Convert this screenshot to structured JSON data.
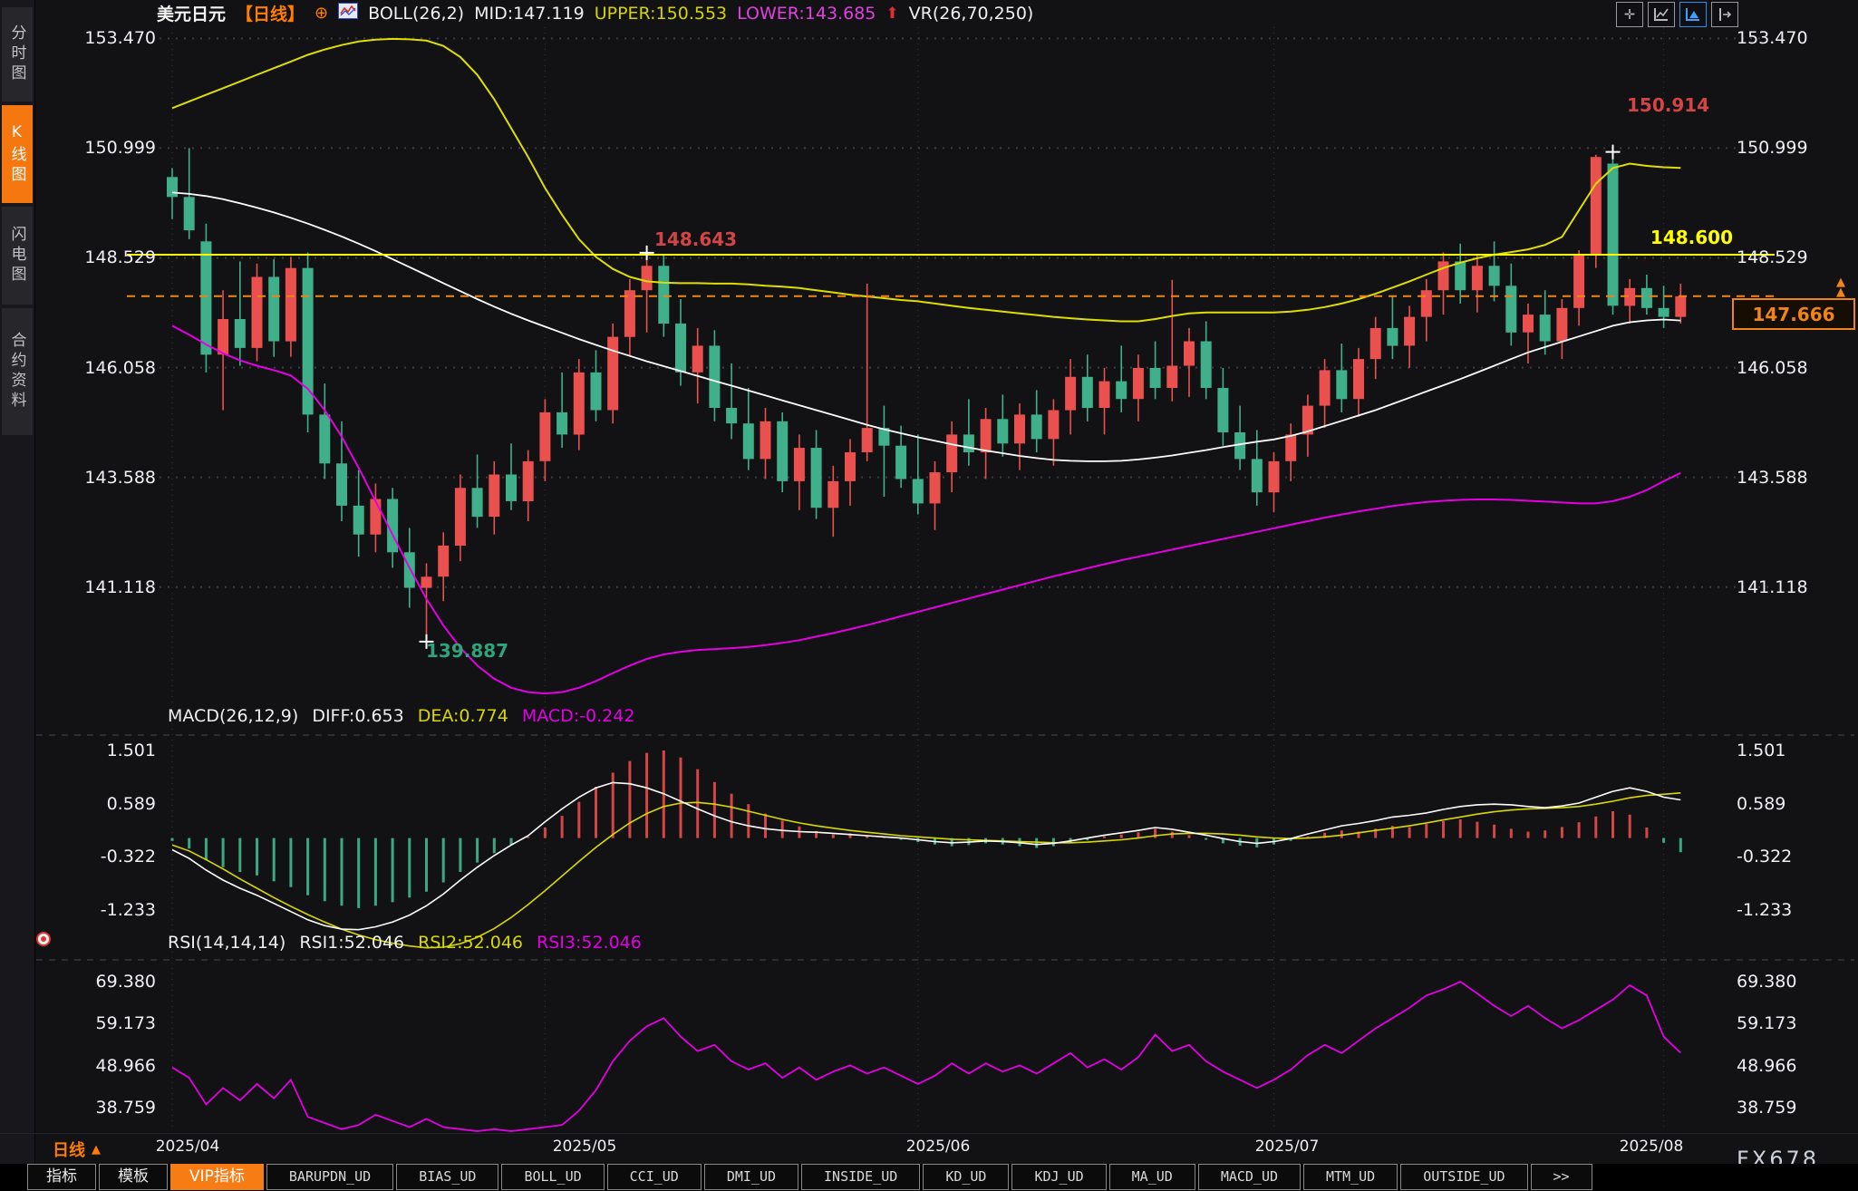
{
  "header": {
    "symbol": "美元日元",
    "period": "【日线】",
    "boll": "BOLL(26,2)",
    "mid": "MID:147.119",
    "upper": "UPPER:150.553",
    "lower": "LOWER:143.685",
    "vr": "VR(26,70,250)"
  },
  "toolbar": {
    "icons": [
      "pan-icon",
      "axis-line-chart-icon",
      "axis-area-chart-icon",
      "axis-shift-icon"
    ],
    "active_index": 2
  },
  "sidebar": {
    "items": [
      {
        "label": "分时图",
        "active": false
      },
      {
        "label": "K线图",
        "active": true
      },
      {
        "label": "闪电图",
        "active": false
      },
      {
        "label": "合约资料",
        "active": false
      }
    ]
  },
  "axis": {
    "main": [
      "153.470",
      "150.999",
      "148.529",
      "146.058",
      "143.588",
      "141.118"
    ],
    "macd": [
      "1.501",
      "0.589",
      "-0.322",
      "-1.233"
    ],
    "rsi": [
      "69.380",
      "59.173",
      "48.966",
      "38.759"
    ]
  },
  "macd_header": {
    "name": "MACD(26,12,9)",
    "diff": "DIFF:0.653",
    "dea": "DEA:0.774",
    "macd": "MACD:-0.242"
  },
  "rsi_header": {
    "name": "RSI(14,14,14)",
    "r1": "RSI1:52.046",
    "r2": "RSI2:52.046",
    "r3": "RSI3:52.046"
  },
  "annotations": {
    "high": "150.914",
    "resistance": "148.600",
    "swing": "148.643",
    "low": "139.887",
    "current": "147.666"
  },
  "xaxis": {
    "months": [
      "2025/04",
      "2025/05",
      "2025/06",
      "2025/07",
      "2025/08"
    ],
    "period_label": "日线",
    "watermark": "FX678"
  },
  "tabs": {
    "active_index": 2,
    "items": [
      "指标",
      "模板",
      "VIP指标",
      "BARUPDN_UD",
      "BIAS_UD",
      "BOLL_UD",
      "CCI_UD",
      "DMI_UD",
      "INSIDE_UD",
      "KD_UD",
      "KDJ_UD",
      "MA_UD",
      "MACD_UD",
      "MTM_UD",
      "OUTSIDE_UD",
      ">>"
    ]
  },
  "colors": {
    "up": "#e9504e",
    "down": "#3fb08a",
    "yellow": "#ffff00",
    "band_upper": "#dede00",
    "mid_line": "#ffffff",
    "magenta": "#e400e4",
    "orange": "#f08418",
    "hist_up": "#d64545",
    "hist_down": "#3aa981",
    "dea": "#d8d800",
    "accent": "#f4770f",
    "active_blue": "#3aa0ff",
    "ann_red": "#d34545",
    "ann_green": "#2fa37a"
  },
  "chart_data": {
    "type": "candlestick",
    "title": "美元日元 日线 BOLL(26,2) + MACD(26,12,9) + RSI(14,14,14)",
    "x_months": [
      "2025/04",
      "2025/05",
      "2025/06",
      "2025/07",
      "2025/08"
    ],
    "month_start_idx": [
      0,
      22,
      44,
      65,
      88
    ],
    "main_ylim": [
      138.5,
      153.7
    ],
    "macd_ylim": [
      -2.0,
      1.9
    ],
    "rsi_ylim": [
      32,
      74
    ],
    "levels": {
      "resistance": 148.6,
      "last_price": 147.666
    },
    "markers": [
      {
        "i": 15,
        "price": 139.887,
        "type": "low"
      },
      {
        "i": 28,
        "price": 148.643,
        "type": "high"
      },
      {
        "i": 85,
        "price": 150.914,
        "type": "high"
      }
    ],
    "candles": [
      [
        150.35,
        150.55,
        149.4,
        149.9
      ],
      [
        149.9,
        151.0,
        148.95,
        149.15
      ],
      [
        148.9,
        149.3,
        145.95,
        146.35
      ],
      [
        146.35,
        147.8,
        145.1,
        147.15
      ],
      [
        147.15,
        148.45,
        146.1,
        146.5
      ],
      [
        146.5,
        148.4,
        146.2,
        148.1
      ],
      [
        148.1,
        148.5,
        146.3,
        146.65
      ],
      [
        146.65,
        148.55,
        146.3,
        148.3
      ],
      [
        148.3,
        148.65,
        144.6,
        145.0
      ],
      [
        145.0,
        145.7,
        143.55,
        143.9
      ],
      [
        143.9,
        144.85,
        142.6,
        142.95
      ],
      [
        142.95,
        143.75,
        141.8,
        142.3
      ],
      [
        142.3,
        143.45,
        141.9,
        143.1
      ],
      [
        143.1,
        143.35,
        141.55,
        141.9
      ],
      [
        141.9,
        142.45,
        140.65,
        141.1
      ],
      [
        141.1,
        141.65,
        139.887,
        141.35
      ],
      [
        141.35,
        142.35,
        140.8,
        142.05
      ],
      [
        142.05,
        143.65,
        141.7,
        143.35
      ],
      [
        143.35,
        144.1,
        142.45,
        142.7
      ],
      [
        142.7,
        143.95,
        142.3,
        143.65
      ],
      [
        143.65,
        144.35,
        142.85,
        143.05
      ],
      [
        143.05,
        144.2,
        142.6,
        143.95
      ],
      [
        143.95,
        145.35,
        143.5,
        145.05
      ],
      [
        145.05,
        145.95,
        144.25,
        144.55
      ],
      [
        144.55,
        146.25,
        144.2,
        145.95
      ],
      [
        145.95,
        146.45,
        144.85,
        145.1
      ],
      [
        145.1,
        147.05,
        144.8,
        146.75
      ],
      [
        146.75,
        148.05,
        146.3,
        147.8
      ],
      [
        147.8,
        148.643,
        146.85,
        148.35
      ],
      [
        148.35,
        148.6,
        146.75,
        147.05
      ],
      [
        147.05,
        147.6,
        145.65,
        145.95
      ],
      [
        145.95,
        146.95,
        145.25,
        146.55
      ],
      [
        146.55,
        146.9,
        144.85,
        145.15
      ],
      [
        145.15,
        146.15,
        144.45,
        144.8
      ],
      [
        144.8,
        145.6,
        143.75,
        144.0
      ],
      [
        144.0,
        145.15,
        143.55,
        144.85
      ],
      [
        144.85,
        145.05,
        143.25,
        143.5
      ],
      [
        143.5,
        144.55,
        142.85,
        144.25
      ],
      [
        144.25,
        144.65,
        142.65,
        142.9
      ],
      [
        142.9,
        143.85,
        142.25,
        143.5
      ],
      [
        143.5,
        144.45,
        142.95,
        144.15
      ],
      [
        144.15,
        147.95,
        143.95,
        144.7
      ],
      [
        144.7,
        145.2,
        143.15,
        144.3
      ],
      [
        144.3,
        144.75,
        143.35,
        143.55
      ],
      [
        143.55,
        144.55,
        142.75,
        143.0
      ],
      [
        143.0,
        143.95,
        142.4,
        143.7
      ],
      [
        143.7,
        144.85,
        143.25,
        144.55
      ],
      [
        144.55,
        145.35,
        143.85,
        144.15
      ],
      [
        144.15,
        145.15,
        143.55,
        144.9
      ],
      [
        144.9,
        145.45,
        144.05,
        144.35
      ],
      [
        144.35,
        145.25,
        143.75,
        145.0
      ],
      [
        145.0,
        145.55,
        144.15,
        144.45
      ],
      [
        144.45,
        145.35,
        143.85,
        145.1
      ],
      [
        145.1,
        146.25,
        144.55,
        145.85
      ],
      [
        145.85,
        146.35,
        144.85,
        145.15
      ],
      [
        145.15,
        146.05,
        144.55,
        145.75
      ],
      [
        145.75,
        146.55,
        145.05,
        145.35
      ],
      [
        145.35,
        146.35,
        144.85,
        146.05
      ],
      [
        146.05,
        146.65,
        145.35,
        145.6
      ],
      [
        145.6,
        148.03,
        145.3,
        146.1
      ],
      [
        146.1,
        146.95,
        145.4,
        146.65
      ],
      [
        146.65,
        147.1,
        145.35,
        145.6
      ],
      [
        145.6,
        146.05,
        144.3,
        144.6
      ],
      [
        144.6,
        145.2,
        143.75,
        144.0
      ],
      [
        144.0,
        144.65,
        142.95,
        143.25
      ],
      [
        143.25,
        144.15,
        142.8,
        143.95
      ],
      [
        143.95,
        144.8,
        143.5,
        144.55
      ],
      [
        144.55,
        145.45,
        144.05,
        145.2
      ],
      [
        145.2,
        146.25,
        144.7,
        146.0
      ],
      [
        146.0,
        146.6,
        145.05,
        145.35
      ],
      [
        145.35,
        146.5,
        144.95,
        146.25
      ],
      [
        146.25,
        147.2,
        145.8,
        146.95
      ],
      [
        146.95,
        147.65,
        146.25,
        146.55
      ],
      [
        146.55,
        147.45,
        146.05,
        147.2
      ],
      [
        147.2,
        148.05,
        146.65,
        147.8
      ],
      [
        147.8,
        148.65,
        147.25,
        148.45
      ],
      [
        148.45,
        148.85,
        147.5,
        147.8
      ],
      [
        147.8,
        148.6,
        147.3,
        148.35
      ],
      [
        148.35,
        148.9,
        147.55,
        147.9
      ],
      [
        147.9,
        148.4,
        146.55,
        146.85
      ],
      [
        146.85,
        147.5,
        146.15,
        147.25
      ],
      [
        147.25,
        147.8,
        146.35,
        146.65
      ],
      [
        146.65,
        147.6,
        146.25,
        147.4
      ],
      [
        147.4,
        148.7,
        147.0,
        148.6
      ],
      [
        148.6,
        150.85,
        148.3,
        150.8
      ],
      [
        150.65,
        150.914,
        147.25,
        147.45
      ],
      [
        147.45,
        148.05,
        147.05,
        147.85
      ],
      [
        147.85,
        148.15,
        147.25,
        147.4
      ],
      [
        147.4,
        147.9,
        146.95,
        147.2
      ],
      [
        147.2,
        147.95,
        147.05,
        147.666
      ]
    ],
    "boll": {
      "upper": [
        151.9,
        152.05,
        152.2,
        152.35,
        152.5,
        152.65,
        152.8,
        152.95,
        153.1,
        153.22,
        153.32,
        153.4,
        153.44,
        153.46,
        153.45,
        153.42,
        153.3,
        153.05,
        152.65,
        152.1,
        151.45,
        150.8,
        150.1,
        149.5,
        148.95,
        148.55,
        148.28,
        148.1,
        148.0,
        147.97,
        147.96,
        147.96,
        147.95,
        147.95,
        147.93,
        147.9,
        147.88,
        147.85,
        147.8,
        147.75,
        147.7,
        147.66,
        147.62,
        147.58,
        147.55,
        147.5,
        147.45,
        147.4,
        147.36,
        147.32,
        147.28,
        147.24,
        147.2,
        147.17,
        147.14,
        147.12,
        147.1,
        147.1,
        147.15,
        147.22,
        147.28,
        147.3,
        147.3,
        147.3,
        147.3,
        147.3,
        147.32,
        147.36,
        147.42,
        147.5,
        147.6,
        147.72,
        147.86,
        148.0,
        148.15,
        148.3,
        148.42,
        148.52,
        148.6,
        148.66,
        148.72,
        148.82,
        149.0,
        149.6,
        150.2,
        150.55,
        150.65,
        150.6,
        150.57,
        150.553
      ],
      "mid": [
        150.0,
        149.97,
        149.92,
        149.85,
        149.76,
        149.66,
        149.55,
        149.43,
        149.3,
        149.16,
        149.01,
        148.85,
        148.68,
        148.5,
        148.32,
        148.14,
        147.96,
        147.78,
        147.6,
        147.43,
        147.27,
        147.12,
        146.98,
        146.84,
        146.7,
        146.57,
        146.44,
        146.32,
        146.2,
        146.09,
        145.98,
        145.87,
        145.76,
        145.65,
        145.54,
        145.43,
        145.32,
        145.21,
        145.1,
        144.99,
        144.88,
        144.77,
        144.67,
        144.58,
        144.49,
        144.41,
        144.33,
        144.26,
        144.19,
        144.13,
        144.07,
        144.02,
        143.98,
        143.96,
        143.95,
        143.95,
        143.96,
        143.99,
        144.03,
        144.08,
        144.14,
        144.2,
        144.27,
        144.33,
        144.39,
        144.44,
        144.52,
        144.62,
        144.74,
        144.86,
        144.98,
        145.1,
        145.24,
        145.38,
        145.52,
        145.66,
        145.8,
        145.95,
        146.1,
        146.25,
        146.4,
        146.52,
        146.64,
        146.76,
        146.88,
        147.0,
        147.08,
        147.12,
        147.14,
        147.119
      ],
      "lower": [
        147.0,
        146.8,
        146.58,
        146.38,
        146.22,
        146.1,
        146.0,
        145.88,
        145.58,
        145.1,
        144.5,
        143.8,
        143.05,
        142.3,
        141.55,
        140.85,
        140.25,
        139.75,
        139.35,
        139.05,
        138.85,
        138.75,
        138.72,
        138.75,
        138.85,
        139.0,
        139.18,
        139.35,
        139.5,
        139.6,
        139.66,
        139.7,
        139.72,
        139.74,
        139.77,
        139.81,
        139.86,
        139.92,
        140.0,
        140.08,
        140.17,
        140.26,
        140.36,
        140.46,
        140.56,
        140.66,
        140.76,
        140.86,
        140.96,
        141.06,
        141.16,
        141.26,
        141.36,
        141.45,
        141.54,
        141.63,
        141.72,
        141.8,
        141.88,
        141.96,
        142.04,
        142.12,
        142.2,
        142.28,
        142.36,
        142.44,
        142.52,
        142.6,
        142.68,
        142.75,
        142.82,
        142.88,
        142.94,
        142.99,
        143.03,
        143.06,
        143.08,
        143.09,
        143.09,
        143.08,
        143.06,
        143.04,
        143.02,
        143.0,
        143.0,
        143.05,
        143.15,
        143.3,
        143.5,
        143.685
      ]
    },
    "macd": {
      "hist": [
        -0.05,
        -0.18,
        -0.38,
        -0.5,
        -0.58,
        -0.64,
        -0.74,
        -0.84,
        -0.98,
        -1.08,
        -1.16,
        -1.2,
        -1.16,
        -1.1,
        -1.02,
        -0.92,
        -0.76,
        -0.58,
        -0.42,
        -0.26,
        -0.12,
        0.02,
        0.18,
        0.38,
        0.62,
        0.88,
        1.12,
        1.32,
        1.46,
        1.5,
        1.38,
        1.18,
        0.96,
        0.76,
        0.58,
        0.42,
        0.3,
        0.2,
        0.12,
        0.06,
        0.08,
        0.05,
        0.02,
        -0.03,
        -0.07,
        -0.11,
        -0.14,
        -0.12,
        -0.09,
        -0.11,
        -0.14,
        -0.17,
        -0.14,
        -0.09,
        -0.04,
        0.03,
        0.06,
        0.1,
        0.16,
        0.11,
        0.05,
        -0.03,
        -0.09,
        -0.13,
        -0.16,
        -0.11,
        -0.05,
        0.03,
        0.09,
        0.13,
        0.11,
        0.16,
        0.21,
        0.19,
        0.24,
        0.29,
        0.32,
        0.28,
        0.23,
        0.16,
        0.11,
        0.13,
        0.19,
        0.27,
        0.37,
        0.46,
        0.4,
        0.18,
        -0.08,
        -0.242
      ],
      "diff": [
        -0.2,
        -0.35,
        -0.55,
        -0.72,
        -0.86,
        -0.98,
        -1.12,
        -1.26,
        -1.4,
        -1.5,
        -1.56,
        -1.57,
        -1.52,
        -1.44,
        -1.32,
        -1.16,
        -0.96,
        -0.72,
        -0.5,
        -0.3,
        -0.12,
        0.04,
        0.28,
        0.5,
        0.7,
        0.86,
        0.95,
        0.93,
        0.86,
        0.76,
        0.63,
        0.5,
        0.38,
        0.28,
        0.21,
        0.16,
        0.13,
        0.11,
        0.1,
        0.08,
        0.06,
        0.04,
        0.02,
        0.0,
        -0.03,
        -0.06,
        -0.08,
        -0.07,
        -0.05,
        -0.06,
        -0.08,
        -0.11,
        -0.09,
        -0.05,
        0.0,
        0.05,
        0.09,
        0.13,
        0.18,
        0.15,
        0.1,
        0.05,
        -0.01,
        -0.06,
        -0.09,
        -0.06,
        -0.01,
        0.07,
        0.14,
        0.21,
        0.25,
        0.3,
        0.36,
        0.39,
        0.43,
        0.49,
        0.54,
        0.57,
        0.58,
        0.57,
        0.54,
        0.52,
        0.55,
        0.6,
        0.7,
        0.8,
        0.86,
        0.8,
        0.7,
        0.653
      ],
      "dea": [
        -0.12,
        -0.22,
        -0.37,
        -0.53,
        -0.7,
        -0.86,
        -1.02,
        -1.17,
        -1.31,
        -1.44,
        -1.56,
        -1.66,
        -1.74,
        -1.8,
        -1.85,
        -1.88,
        -1.87,
        -1.81,
        -1.7,
        -1.55,
        -1.36,
        -1.14,
        -0.9,
        -0.65,
        -0.4,
        -0.16,
        0.06,
        0.26,
        0.42,
        0.54,
        0.6,
        0.61,
        0.58,
        0.53,
        0.46,
        0.39,
        0.32,
        0.26,
        0.21,
        0.17,
        0.13,
        0.1,
        0.07,
        0.04,
        0.02,
        0.0,
        -0.02,
        -0.03,
        -0.04,
        -0.05,
        -0.06,
        -0.07,
        -0.08,
        -0.08,
        -0.07,
        -0.05,
        -0.03,
        0.0,
        0.04,
        0.07,
        0.08,
        0.08,
        0.07,
        0.05,
        0.02,
        0.0,
        -0.01,
        0.0,
        0.02,
        0.05,
        0.09,
        0.13,
        0.17,
        0.21,
        0.26,
        0.31,
        0.36,
        0.41,
        0.45,
        0.48,
        0.5,
        0.51,
        0.52,
        0.54,
        0.58,
        0.63,
        0.69,
        0.73,
        0.75,
        0.774
      ]
    },
    "rsi": [
      48.5,
      46.0,
      39.5,
      43.5,
      40.5,
      44.5,
      41.0,
      45.5,
      36.5,
      35.0,
      33.5,
      34.5,
      37.0,
      35.5,
      34.0,
      36.0,
      34.0,
      33.5,
      33.0,
      33.5,
      33.0,
      33.5,
      34.0,
      34.5,
      38.0,
      43.0,
      50.0,
      55.0,
      58.5,
      60.5,
      56.0,
      52.5,
      54.0,
      50.0,
      48.0,
      49.5,
      46.0,
      48.5,
      45.5,
      47.5,
      49.0,
      47.0,
      48.5,
      46.5,
      44.5,
      46.5,
      49.5,
      47.0,
      49.5,
      47.5,
      49.0,
      47.0,
      49.5,
      52.0,
      48.5,
      50.5,
      48.0,
      51.0,
      56.5,
      52.5,
      54.0,
      50.0,
      47.5,
      45.5,
      43.5,
      45.5,
      48.0,
      51.5,
      54.0,
      52.0,
      55.0,
      58.0,
      60.5,
      63.0,
      66.0,
      67.5,
      69.38,
      66.5,
      63.5,
      61.0,
      63.5,
      60.5,
      58.0,
      60.0,
      62.5,
      65.0,
      68.5,
      66.0,
      56.0,
      52.046
    ]
  }
}
